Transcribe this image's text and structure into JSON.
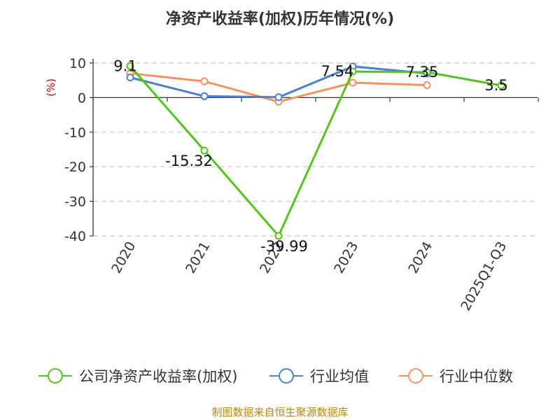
{
  "chart_data": {
    "type": "line",
    "title": "净资产收益率(加权)历年情况(%)",
    "ylabel": "(%)",
    "categories": [
      "2020",
      "2021",
      "2022",
      "2023",
      "2024",
      "2025Q1-Q3"
    ],
    "ylim": [
      -40,
      10
    ],
    "yticks": [
      "10",
      "0",
      "-10",
      "-20",
      "-30",
      "-40"
    ],
    "ytick_values": [
      10,
      0,
      -10,
      -20,
      -30,
      -40
    ],
    "grid": true,
    "legend_position": "bottom",
    "series": [
      {
        "name": "公司净资产收益率(加权)",
        "color": "#52c41a",
        "values": [
          9.1,
          -15.32,
          -39.99,
          7.54,
          7.35,
          3.5
        ],
        "labels": [
          "9.1",
          "-15.32",
          "-39.99",
          "7.54",
          "7.35",
          "3.5"
        ]
      },
      {
        "name": "行业均值",
        "color": "#4a7fd6",
        "values": [
          5.8,
          0.4,
          0.1,
          9.0,
          7.0,
          null
        ]
      },
      {
        "name": "行业中位数",
        "color": "#f39260",
        "values": [
          7.0,
          4.7,
          -1.2,
          4.3,
          3.6,
          null
        ]
      }
    ]
  },
  "source": "制图数据来自恒生聚源数据库"
}
